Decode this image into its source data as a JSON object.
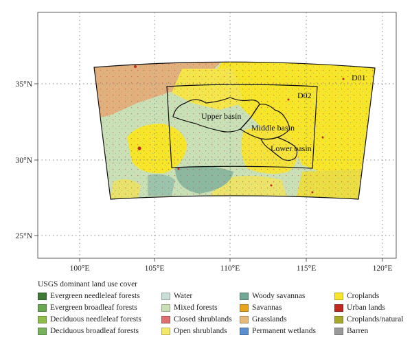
{
  "map": {
    "lat_ticks": [
      "25°N",
      "30°N",
      "35°N"
    ],
    "lon_ticks": [
      "100°E",
      "105°E",
      "110°E",
      "115°E",
      "120°E"
    ],
    "domains": [
      "D01",
      "D02"
    ],
    "basins": [
      "Upper basin",
      "Middle basin",
      "Lower basin"
    ]
  },
  "legend": {
    "title": "USGS dominant land use cover",
    "items": [
      {
        "label": "Evergreen needleleaf forests",
        "color": "#3d7a35"
      },
      {
        "label": "Evergreen broadleaf forests",
        "color": "#6aa84f"
      },
      {
        "label": "Deciduous needleleaf forests",
        "color": "#8fbf4a"
      },
      {
        "label": "Deciduous broadleaf forests",
        "color": "#76b35c"
      },
      {
        "label": "Water",
        "color": "#c8dfd6"
      },
      {
        "label": "Mixed forests",
        "color": "#c9dfb6"
      },
      {
        "label": "Closed shrublands",
        "color": "#e07070"
      },
      {
        "label": "Open shrublands",
        "color": "#f2e96a"
      },
      {
        "label": "Woody savannas",
        "color": "#6fa993"
      },
      {
        "label": "Savannas",
        "color": "#e8a41c"
      },
      {
        "label": "Grasslands",
        "color": "#e8b87a"
      },
      {
        "label": "Permanent wetlands",
        "color": "#5b8fcf"
      },
      {
        "label": "Croplands",
        "color": "#f7e52a"
      },
      {
        "label": "Urban lands",
        "color": "#c0281e"
      },
      {
        "label": "Croplands/natural",
        "color": "#a8a82a"
      },
      {
        "label": "Barren",
        "color": "#9a9a9a"
      }
    ]
  }
}
